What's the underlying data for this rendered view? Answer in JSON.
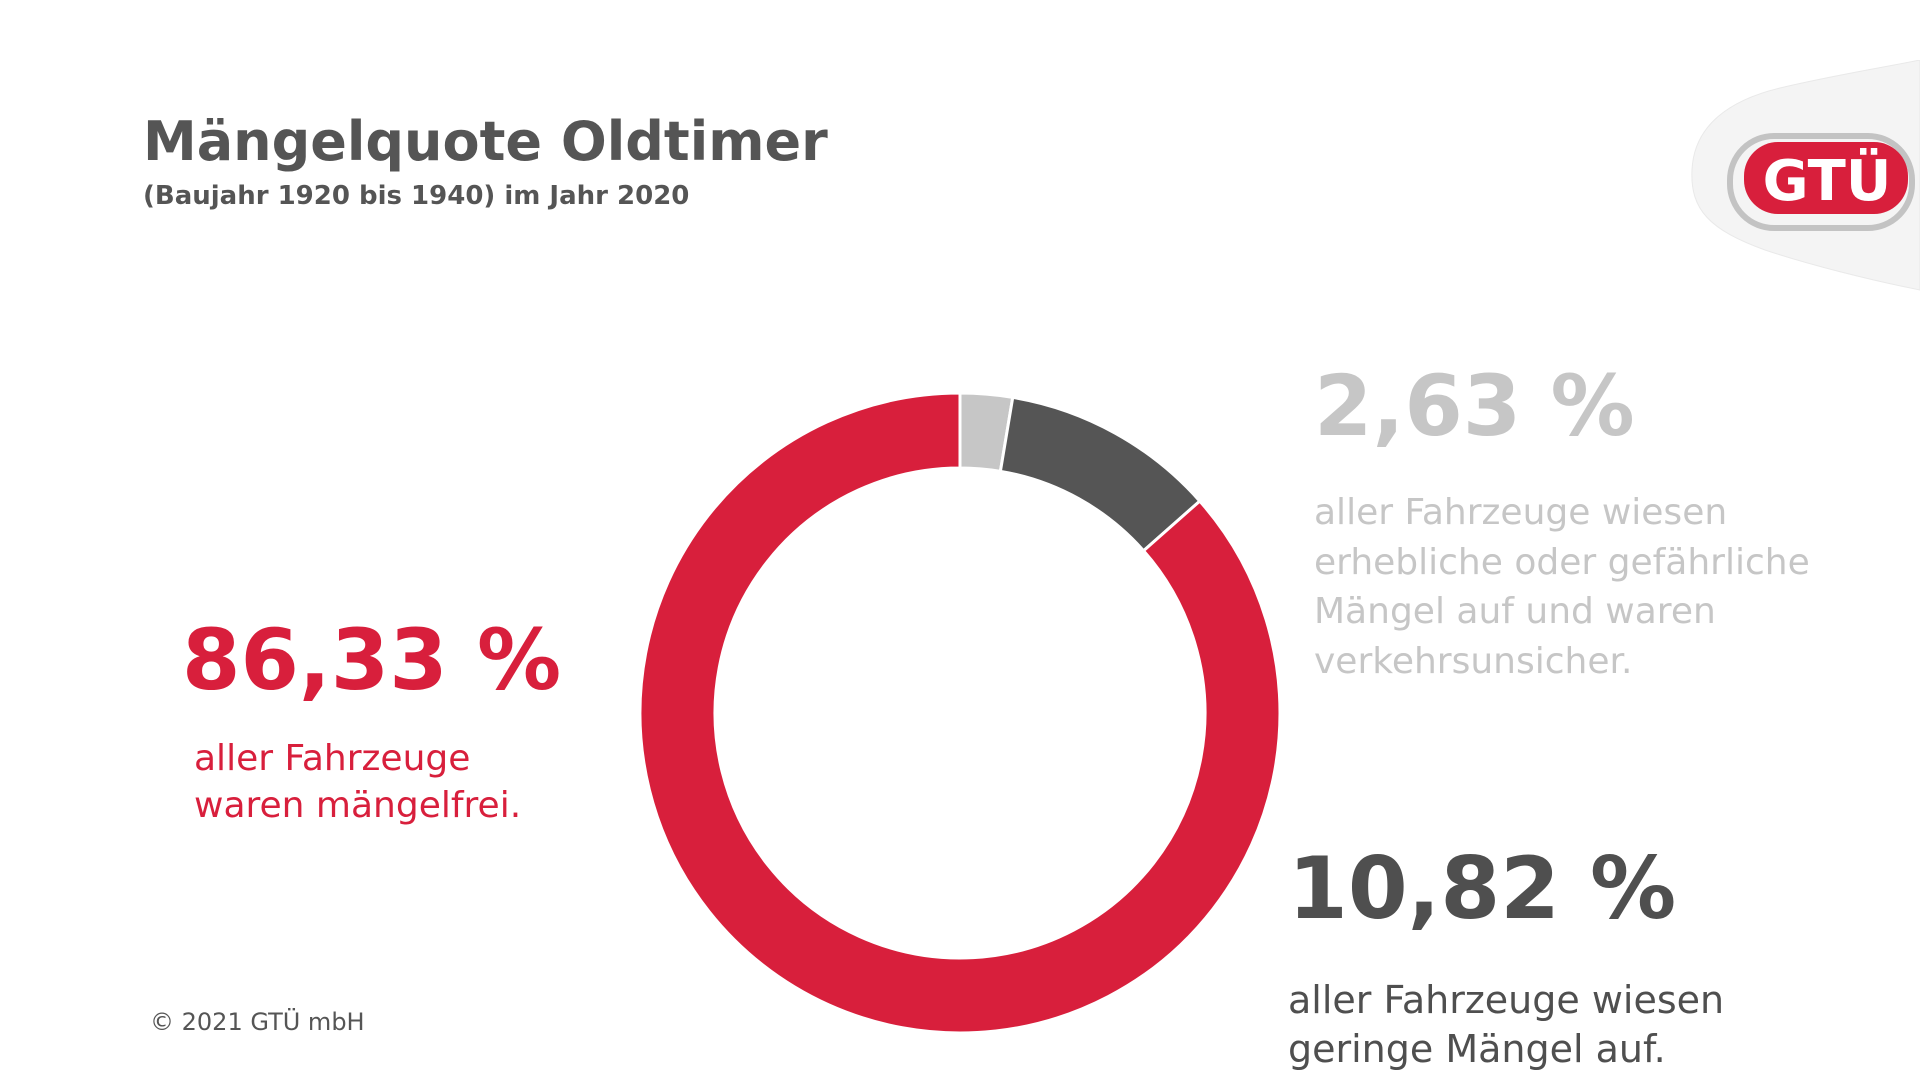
{
  "header": {
    "title": "Mängelquote Oldtimer",
    "subtitle": "(Baujahr 1920 bis 1940) im Jahr 2020"
  },
  "logo": {
    "text": "GTÜ"
  },
  "colors": {
    "red": "#d81f3c",
    "dark_gray": "#555555",
    "light_gray": "#c6c6c6"
  },
  "chart_data": {
    "type": "pie",
    "labels": [
      "erhebliche oder gefährliche Mängel",
      "geringe Mängel",
      "mängelfrei"
    ],
    "values": [
      2.63,
      10.82,
      86.33
    ],
    "colors": [
      "#c6c6c6",
      "#555555",
      "#d81f3c"
    ]
  },
  "stats": {
    "freed": {
      "value": "86,33 %",
      "line1": "aller Fahrzeuge",
      "line2": "waren mängelfrei."
    },
    "unsafe": {
      "value": "2,63 %",
      "line1": "aller Fahrzeuge wiesen",
      "line2": "erhebliche oder gefährliche",
      "line3": "Mängel auf und waren",
      "line4": "verkehrsunsicher."
    },
    "minor": {
      "value": "10,82 %",
      "line1": "aller Fahrzeuge wiesen",
      "line2": "geringe Mängel auf."
    }
  },
  "footer": {
    "copyright": "© 2021 GTÜ mbH"
  }
}
